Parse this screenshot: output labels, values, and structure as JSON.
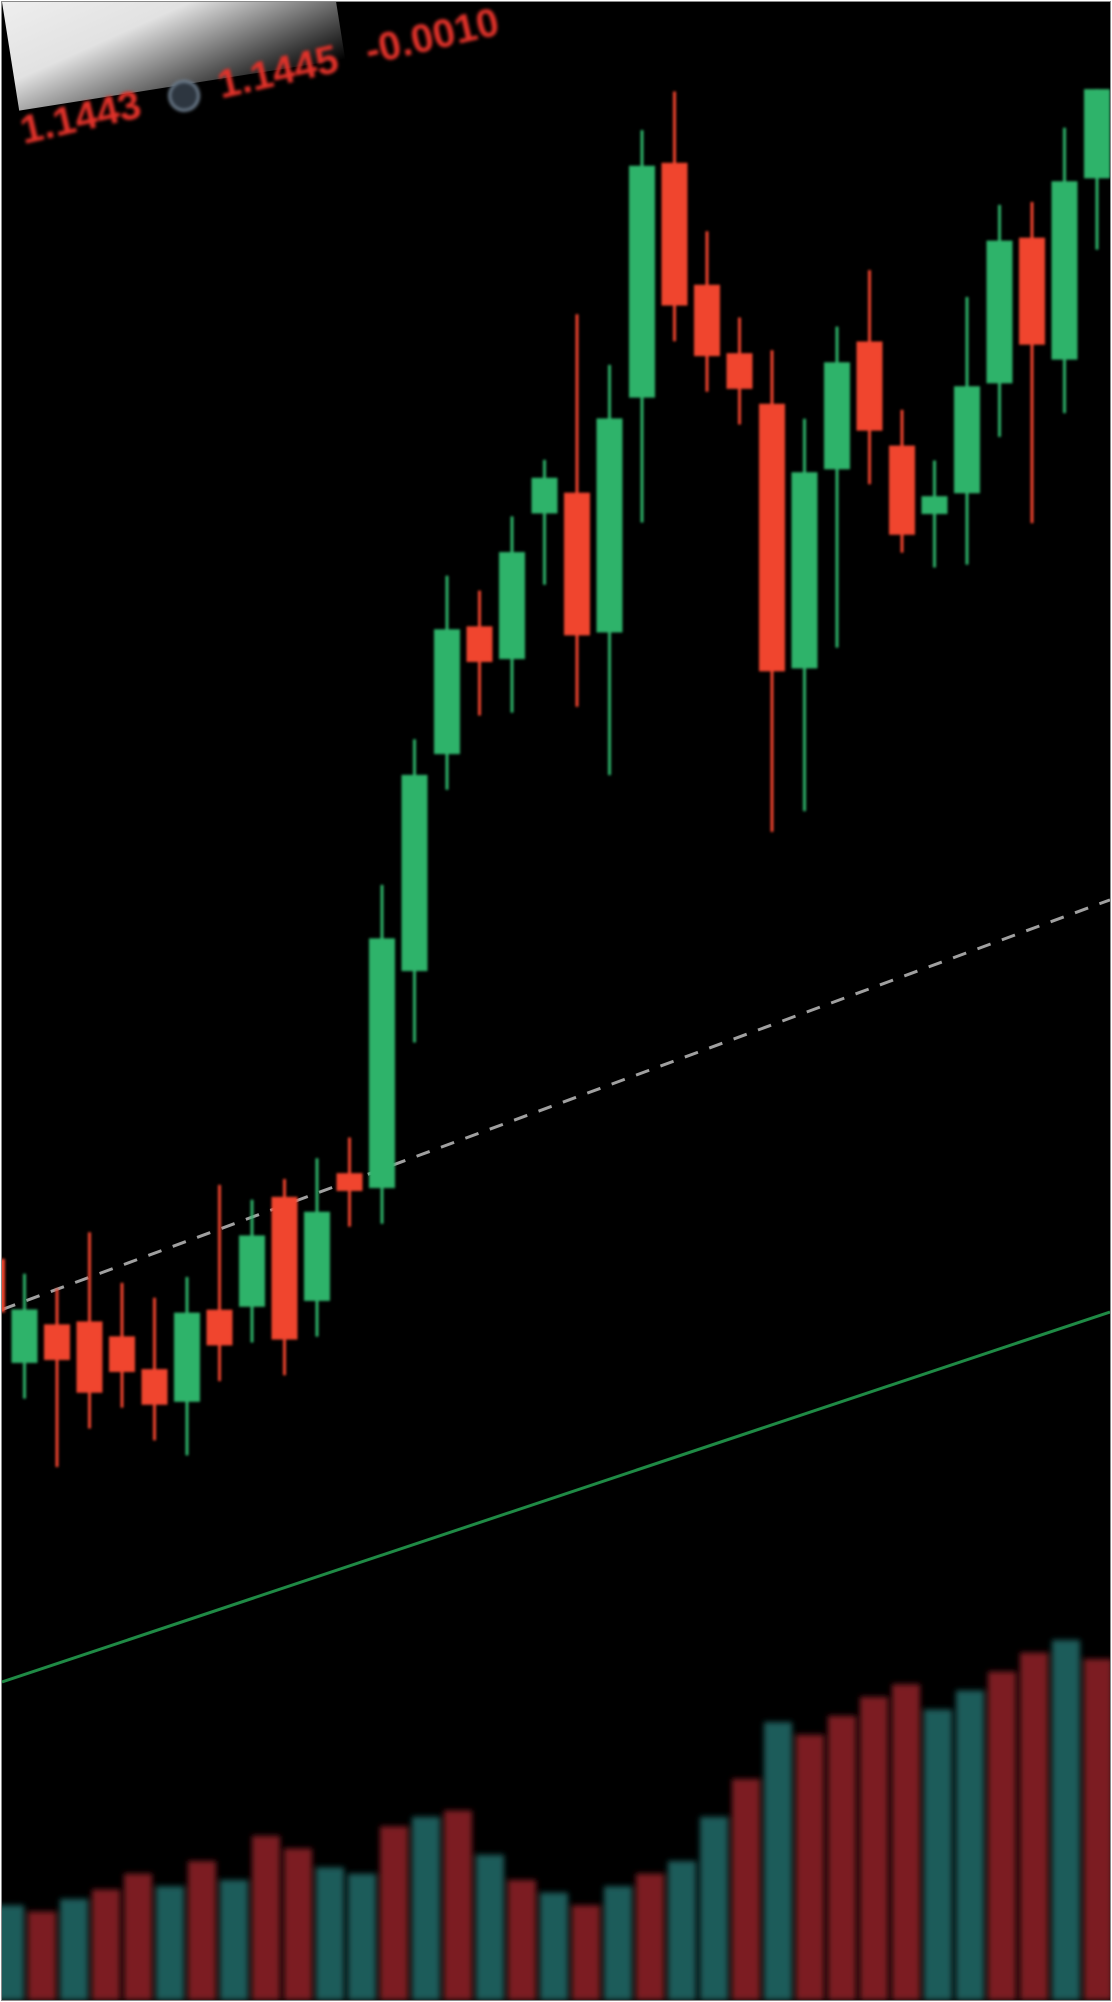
{
  "header": {
    "items": [
      {
        "text": "1.1443",
        "color": "#e2322a"
      },
      {
        "text": "1.1445",
        "color": "#e2322a"
      },
      {
        "text": "-0.0010",
        "color": "#e2322a"
      }
    ],
    "icon": "indicator-circle-icon"
  },
  "colors": {
    "background": "#000000",
    "up": "#2fb36b",
    "down": "#f0452e",
    "volume_up": "#1c5c5a",
    "volume_down": "#7c1c22",
    "reference_line": "#bdbdbd",
    "trend_line": "#1f8a45"
  },
  "chart_data": {
    "type": "candlestick",
    "candles": [
      {
        "open": 1.143,
        "high": 1.1436,
        "low": 1.1426,
        "close": 1.1427
      },
      {
        "open": 1.1424,
        "high": 1.1429,
        "low": 1.1422,
        "close": 1.1427
      },
      {
        "open": 1.1426,
        "high": 1.1428,
        "low": 1.1418,
        "close": 1.1424
      },
      {
        "open": 1.1426,
        "high": 1.1431,
        "low": 1.142,
        "close": 1.1422
      },
      {
        "open": 1.1425,
        "high": 1.1428,
        "low": 1.1421,
        "close": 1.1423
      },
      {
        "open": 1.1423,
        "high": 1.1427,
        "low": 1.1419,
        "close": 1.1421
      },
      {
        "open": 1.1421,
        "high": 1.1428,
        "low": 1.1418,
        "close": 1.1426
      },
      {
        "open": 1.1426,
        "high": 1.1433,
        "low": 1.1422,
        "close": 1.1424
      },
      {
        "open": 1.1426,
        "high": 1.1432,
        "low": 1.1424,
        "close": 1.143
      },
      {
        "open": 1.1432,
        "high": 1.1433,
        "low": 1.1422,
        "close": 1.1424
      },
      {
        "open": 1.1426,
        "high": 1.1434,
        "low": 1.1424,
        "close": 1.1431
      },
      {
        "open": 1.1433,
        "high": 1.1435,
        "low": 1.143,
        "close": 1.1432
      },
      {
        "open": 1.1432,
        "high": 1.1449,
        "low": 1.143,
        "close": 1.1446
      },
      {
        "open": 1.1444,
        "high": 1.1457,
        "low": 1.144,
        "close": 1.1455
      },
      {
        "open": 1.1456,
        "high": 1.1466,
        "low": 1.1454,
        "close": 1.1463
      },
      {
        "open": 1.1463,
        "high": 1.1465,
        "low": 1.1458,
        "close": 1.1461
      },
      {
        "open": 1.1461,
        "high": 1.1469,
        "low": 1.1458,
        "close": 1.1467
      },
      {
        "open": 1.1469,
        "high": 1.1472,
        "low": 1.1465,
        "close": 1.1471
      },
      {
        "open": 1.147,
        "high": 1.148,
        "low": 1.1458,
        "close": 1.1462
      },
      {
        "open": 1.1462,
        "high": 1.1477,
        "low": 1.1454,
        "close": 1.1474
      },
      {
        "open": 1.1475,
        "high": 1.149,
        "low": 1.1468,
        "close": 1.1488
      },
      {
        "open": 1.1488,
        "high": 1.1492,
        "low": 1.1478,
        "close": 1.148
      },
      {
        "open": 1.1481,
        "high": 1.1484,
        "low": 1.1475,
        "close": 1.1477
      },
      {
        "open": 1.1477,
        "high": 1.1479,
        "low": 1.1473,
        "close": 1.1475
      },
      {
        "open": 1.1474,
        "high": 1.1477,
        "low": 1.145,
        "close": 1.1459
      },
      {
        "open": 1.1459,
        "high": 1.1473,
        "low": 1.1451,
        "close": 1.147
      },
      {
        "open": 1.147,
        "high": 1.1478,
        "low": 1.146,
        "close": 1.1476
      },
      {
        "open": 1.1477,
        "high": 1.1481,
        "low": 1.1469,
        "close": 1.1472
      },
      {
        "open": 1.1471,
        "high": 1.1473,
        "low": 1.1465,
        "close": 1.1466
      },
      {
        "open": 1.1467,
        "high": 1.147,
        "low": 1.1464,
        "close": 1.1468
      },
      {
        "open": 1.1468,
        "high": 1.1479,
        "low": 1.1464,
        "close": 1.1474
      },
      {
        "open": 1.1474,
        "high": 1.1484,
        "low": 1.1471,
        "close": 1.1482
      },
      {
        "open": 1.1482,
        "high": 1.1484,
        "low": 1.1466,
        "close": 1.1476
      },
      {
        "open": 1.1475,
        "high": 1.1488,
        "low": 1.1472,
        "close": 1.1485
      },
      {
        "open": 1.1485,
        "high": 1.149,
        "low": 1.1481,
        "close": 1.149
      }
    ],
    "volume": [
      {
        "value": 30,
        "up": true
      },
      {
        "value": 28,
        "up": false
      },
      {
        "value": 32,
        "up": true
      },
      {
        "value": 35,
        "up": false
      },
      {
        "value": 40,
        "up": false
      },
      {
        "value": 36,
        "up": true
      },
      {
        "value": 44,
        "up": false
      },
      {
        "value": 38,
        "up": true
      },
      {
        "value": 52,
        "up": false
      },
      {
        "value": 48,
        "up": false
      },
      {
        "value": 42,
        "up": true
      },
      {
        "value": 40,
        "up": true
      },
      {
        "value": 55,
        "up": false
      },
      {
        "value": 58,
        "up": true
      },
      {
        "value": 60,
        "up": false
      },
      {
        "value": 46,
        "up": true
      },
      {
        "value": 38,
        "up": false
      },
      {
        "value": 34,
        "up": true
      },
      {
        "value": 30,
        "up": false
      },
      {
        "value": 36,
        "up": true
      },
      {
        "value": 40,
        "up": false
      },
      {
        "value": 44,
        "up": true
      },
      {
        "value": 58,
        "up": true
      },
      {
        "value": 70,
        "up": false
      },
      {
        "value": 88,
        "up": true
      },
      {
        "value": 84,
        "up": false
      },
      {
        "value": 90,
        "up": false
      },
      {
        "value": 96,
        "up": false
      },
      {
        "value": 100,
        "up": false
      },
      {
        "value": 92,
        "up": true
      },
      {
        "value": 98,
        "up": true
      },
      {
        "value": 104,
        "up": false
      },
      {
        "value": 110,
        "up": false
      },
      {
        "value": 114,
        "up": true
      },
      {
        "value": 108,
        "up": false
      }
    ],
    "reference_price": 1.144
  }
}
